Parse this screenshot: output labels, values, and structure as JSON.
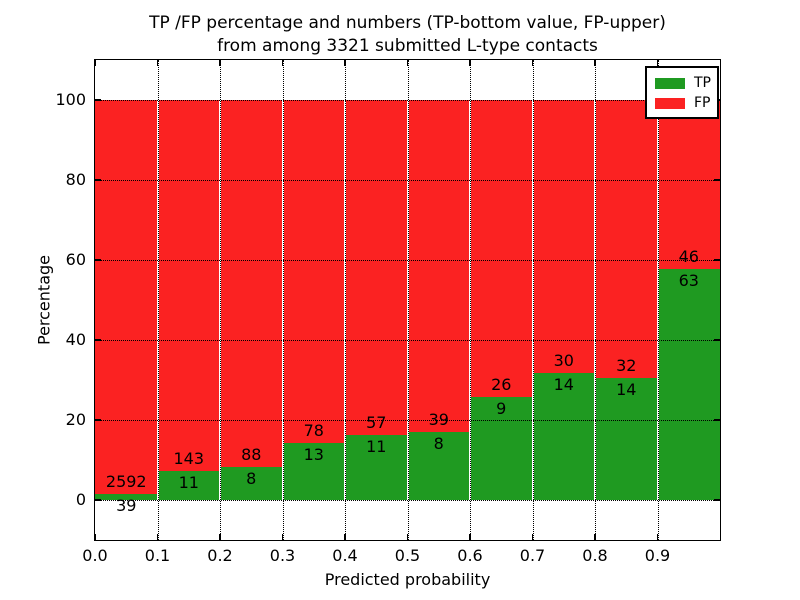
{
  "figure": {
    "title_line1": "TP /FP percentage and numbers (TP-bottom value, FP-upper)",
    "title_line2": "from among 3321 submitted L-type contacts"
  },
  "chart_data": {
    "type": "bar",
    "stacked": true,
    "normalized_to_percent": true,
    "title": "TP /FP percentage and numbers (TP-bottom value, FP-upper) from among 3321 submitted L-type contacts",
    "total_submitted": 3321,
    "xlabel": "Predicted probability",
    "ylabel": "Percentage",
    "xlim": [
      0.0,
      1.0
    ],
    "ylim": [
      -10,
      110
    ],
    "x_ticks": [
      "0.0",
      "0.1",
      "0.2",
      "0.3",
      "0.4",
      "0.5",
      "0.6",
      "0.7",
      "0.8",
      "0.9"
    ],
    "y_ticks": [
      0,
      20,
      40,
      60,
      80,
      100
    ],
    "grid": {
      "visible": true,
      "linestyle": "dotted"
    },
    "categories": [
      "0.0-0.1",
      "0.1-0.2",
      "0.2-0.3",
      "0.3-0.4",
      "0.4-0.5",
      "0.5-0.6",
      "0.6-0.7",
      "0.7-0.8",
      "0.8-0.9",
      "0.9-1.0"
    ],
    "series": [
      {
        "name": "TP",
        "color": "#1f9a21",
        "counts": [
          39,
          11,
          8,
          13,
          11,
          8,
          9,
          14,
          14,
          63
        ]
      },
      {
        "name": "FP",
        "color": "#fb2222",
        "counts": [
          2592,
          143,
          88,
          78,
          57,
          39,
          26,
          30,
          32,
          46
        ]
      }
    ],
    "legend": {
      "position": "upper-right",
      "entries": [
        {
          "label": "TP",
          "color": "#1f9a21"
        },
        {
          "label": "FP",
          "color": "#fb2222"
        }
      ]
    }
  }
}
